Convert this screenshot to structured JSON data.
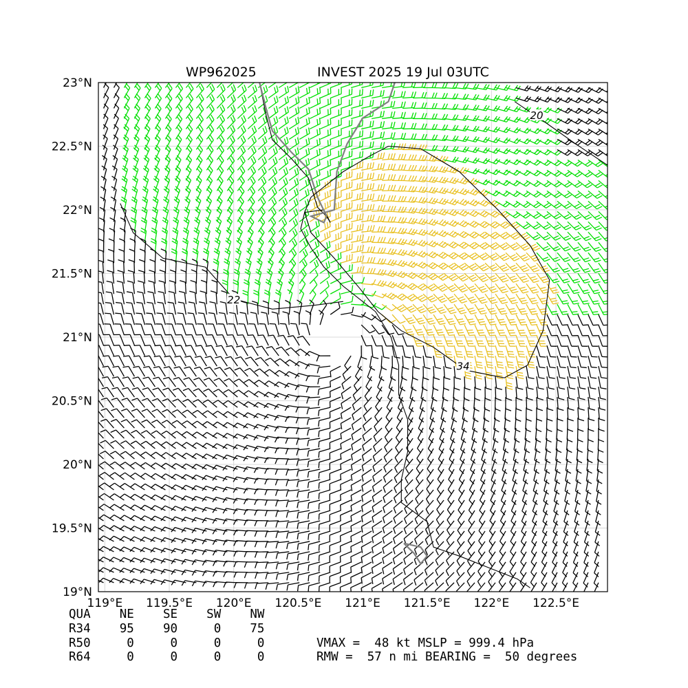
{
  "chart_data": {
    "type": "wind-barb-map",
    "storm_id": "WP962025",
    "title": "INVEST 2025 19 Jul 03UTC",
    "xlim": [
      118.95,
      122.9
    ],
    "ylim": [
      19.0,
      23.0
    ],
    "x_ticks": [
      {
        "value": 119.0,
        "label": "119°E"
      },
      {
        "value": 119.5,
        "label": "119.5°E"
      },
      {
        "value": 120.0,
        "label": "120°E"
      },
      {
        "value": 120.5,
        "label": "120.5°E"
      },
      {
        "value": 121.0,
        "label": "121°E"
      },
      {
        "value": 121.5,
        "label": "121.5°E"
      },
      {
        "value": 122.0,
        "label": "122°E"
      },
      {
        "value": 122.5,
        "label": "122.5°E"
      }
    ],
    "y_ticks": [
      {
        "value": 19.0,
        "label": "19°N"
      },
      {
        "value": 19.5,
        "label": "19.5°N"
      },
      {
        "value": 20.0,
        "label": "20°N"
      },
      {
        "value": 20.5,
        "label": "20.5°N"
      },
      {
        "value": 21.0,
        "label": "21°N"
      },
      {
        "value": 21.5,
        "label": "21.5°N"
      },
      {
        "value": 22.0,
        "label": "22°N"
      },
      {
        "value": 22.5,
        "label": "22.5°N"
      },
      {
        "value": 23.0,
        "label": "23°N"
      }
    ],
    "grid": true,
    "storm_center": {
      "lon": 120.8,
      "lat": 21.0
    },
    "contours": [
      {
        "label": "22",
        "label_lon": 120.0,
        "label_lat": 21.28,
        "points": [
          [
            119.12,
            22.05
          ],
          [
            119.22,
            21.82
          ],
          [
            119.45,
            21.62
          ],
          [
            119.78,
            21.55
          ],
          [
            120.0,
            21.3
          ],
          [
            120.3,
            21.22
          ],
          [
            120.62,
            21.25
          ],
          [
            120.85,
            21.28
          ]
        ]
      },
      {
        "label": "34",
        "label_lon": 121.78,
        "label_lat": 20.76,
        "points": [
          [
            120.6,
            22.1
          ],
          [
            120.85,
            22.3
          ],
          [
            121.05,
            22.42
          ],
          [
            121.2,
            22.5
          ],
          [
            121.45,
            22.48
          ],
          [
            121.75,
            22.3
          ],
          [
            122.05,
            22.0
          ],
          [
            122.3,
            21.72
          ],
          [
            122.45,
            21.45
          ],
          [
            122.4,
            21.05
          ],
          [
            122.28,
            20.78
          ],
          [
            122.1,
            20.68
          ],
          [
            121.8,
            20.74
          ],
          [
            121.55,
            20.92
          ],
          [
            121.3,
            21.05
          ],
          [
            121.12,
            21.2
          ],
          [
            120.98,
            21.38
          ],
          [
            120.78,
            21.62
          ],
          [
            120.6,
            21.82
          ],
          [
            120.55,
            21.98
          ],
          [
            120.6,
            22.1
          ]
        ]
      },
      {
        "label": "20",
        "label_lon": 122.35,
        "label_lat": 22.73,
        "points": [
          [
            122.18,
            22.85
          ],
          [
            122.4,
            22.7
          ],
          [
            122.65,
            22.52
          ],
          [
            122.9,
            22.35
          ]
        ]
      }
    ],
    "coastlines": [
      {
        "name": "coast",
        "points": [
          [
            120.2,
            23.0
          ],
          [
            120.25,
            22.75
          ],
          [
            120.3,
            22.55
          ],
          [
            120.45,
            22.4
          ],
          [
            120.58,
            22.25
          ],
          [
            120.65,
            22.02
          ],
          [
            120.72,
            21.95
          ],
          [
            120.75,
            21.9
          ],
          [
            120.7,
            22.0
          ],
          [
            120.55,
            21.98
          ],
          [
            120.52,
            21.85
          ],
          [
            120.6,
            21.7
          ],
          [
            120.7,
            21.55
          ],
          [
            120.85,
            21.4
          ],
          [
            121.1,
            21.2
          ],
          [
            121.22,
            21.0
          ],
          [
            121.28,
            20.78
          ],
          [
            121.28,
            20.55
          ],
          [
            121.35,
            20.35
          ],
          [
            121.35,
            20.1
          ],
          [
            121.3,
            19.88
          ],
          [
            121.3,
            19.7
          ],
          [
            121.5,
            19.55
          ],
          [
            121.55,
            19.35
          ],
          [
            121.75,
            19.28
          ],
          [
            122.0,
            19.18
          ],
          [
            122.2,
            19.1
          ],
          [
            122.3,
            19.03
          ]
        ]
      }
    ],
    "borders": [
      {
        "name": "taiwan-coast",
        "points": [
          [
            120.2,
            23.0
          ],
          [
            120.25,
            22.8
          ],
          [
            120.3,
            22.62
          ],
          [
            120.45,
            22.45
          ],
          [
            120.58,
            22.32
          ],
          [
            120.65,
            22.1
          ],
          [
            120.72,
            21.95
          ],
          [
            120.7,
            21.9
          ],
          [
            120.6,
            21.95
          ],
          [
            120.78,
            22.0
          ],
          [
            120.8,
            22.3
          ],
          [
            120.88,
            22.52
          ],
          [
            121.0,
            22.72
          ],
          [
            121.2,
            22.85
          ],
          [
            121.25,
            23.0
          ]
        ]
      },
      {
        "name": "island-outline",
        "points": [
          [
            121.32,
            19.38
          ],
          [
            121.45,
            19.35
          ],
          [
            121.5,
            19.28
          ],
          [
            121.45,
            19.22
          ],
          [
            121.4,
            19.3
          ],
          [
            121.32,
            19.38
          ]
        ]
      }
    ],
    "barb_regions": [
      {
        "name": "lt-34kt",
        "color": "#000000",
        "speed_range_kt": [
          0,
          34
        ]
      },
      {
        "name": "34-50kt",
        "color": "#00e000",
        "speed_range_kt": [
          34,
          50
        ]
      },
      {
        "name": "gt-34kt-quadrant",
        "color": "#e8c020",
        "speed_range_kt": [
          34,
          50
        ]
      }
    ],
    "barb_spacing_deg": 0.08
  },
  "quadrant_table": {
    "header": [
      "QUA",
      "NE",
      "SE",
      "SW",
      "NW"
    ],
    "rows": [
      {
        "label": "R34",
        "values": [
          "95",
          "90",
          "0",
          "75"
        ]
      },
      {
        "label": "R50",
        "values": [
          "0",
          "0",
          "0",
          "0"
        ]
      },
      {
        "label": "R64",
        "values": [
          "0",
          "0",
          "0",
          "0"
        ]
      }
    ]
  },
  "summary": {
    "line1": "VMAX =  48 kt MSLP = 999.4 hPa",
    "line2": "RMW =  57 n mi BEARING =  50 degrees"
  },
  "colors": {
    "grid": "#d8d8d8",
    "coast": "#000000",
    "border": "#808080",
    "barb_black": "#000000",
    "barb_green": "#00e000",
    "barb_yellow": "#e8c020"
  }
}
